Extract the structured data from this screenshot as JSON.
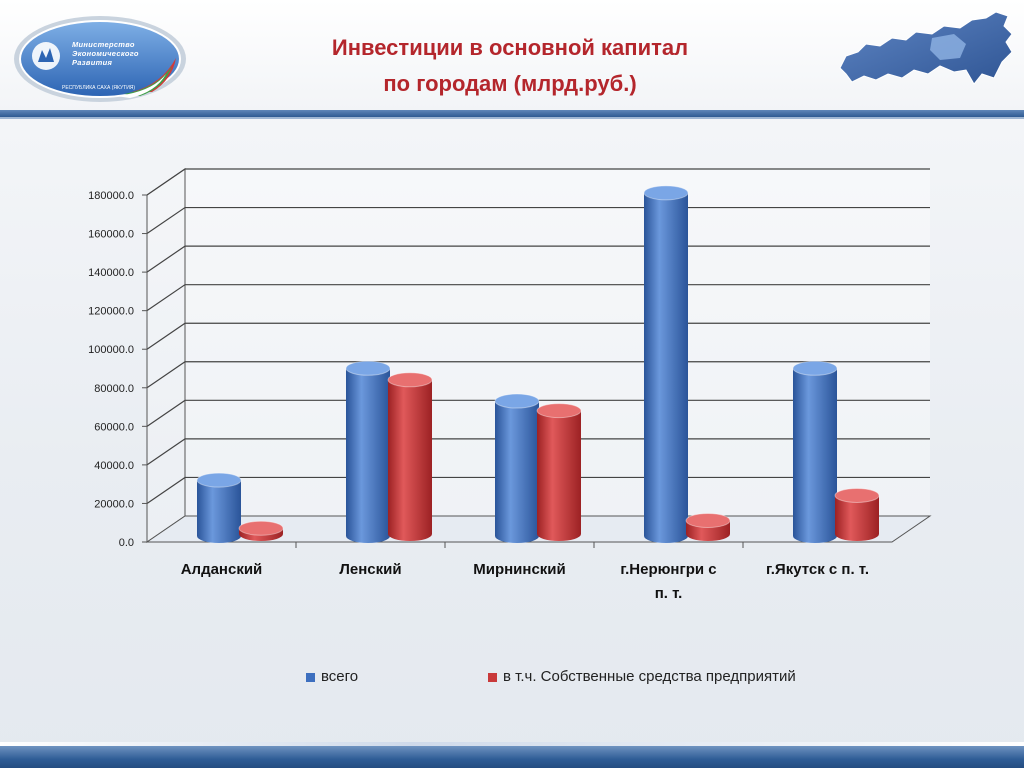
{
  "header": {
    "title_line1": "Инвестиции в основной капитал",
    "title_line2": "по городам (млрд.руб.)",
    "logo_text_line1": "Министерство",
    "logo_text_line2": "Экономического",
    "logo_text_line3": "Развития",
    "logo_subtext": "РЕСПУБЛИКА САХА (ЯКУТИЯ)"
  },
  "colors": {
    "title": "#b4262c",
    "series_total": "#3d6fbf",
    "series_own": "#c9393a"
  },
  "chart_data": {
    "type": "bar",
    "categories": [
      "Алданский",
      "Ленский",
      "Мирнинский",
      "г.Нерюнгри с п. т.",
      "г.Якутск с п. т."
    ],
    "category_lines": [
      [
        "Алданский"
      ],
      [
        "Ленский"
      ],
      [
        "Мирнинский"
      ],
      [
        "г.Нерюнгри с",
        "п. т."
      ],
      [
        "г.Якутск с п. т."
      ]
    ],
    "series": [
      {
        "name": "всего",
        "values": [
          29000,
          87000,
          70000,
          178000,
          87000
        ]
      },
      {
        "name": "в т.ч. Собственные средства предприятий",
        "values": [
          3000,
          80000,
          64000,
          7000,
          20000
        ]
      }
    ],
    "ylim": [
      0,
      180000
    ],
    "yticks": [
      "0.0",
      "20000.0",
      "40000.0",
      "60000.0",
      "80000.0",
      "100000.0",
      "120000.0",
      "140000.0",
      "160000.0",
      "180000.0"
    ],
    "grid": true,
    "legend_position": "bottom",
    "style": "3d-cylinder"
  }
}
